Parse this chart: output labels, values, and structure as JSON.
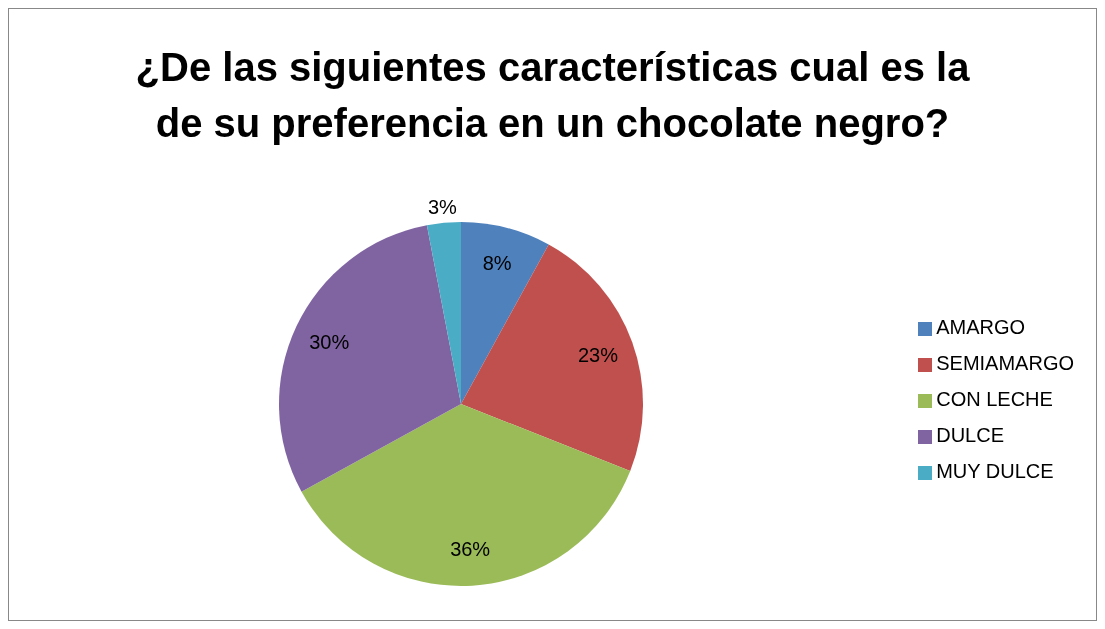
{
  "chart_data": {
    "type": "pie",
    "title": "¿De las siguientes características cual es la de su preferencia en un chocolate negro?",
    "categories": [
      "AMARGO",
      "SEMIAMARGO",
      "CON LECHE",
      "DULCE",
      "MUY DULCE"
    ],
    "values": [
      8,
      23,
      36,
      30,
      3
    ],
    "colors": [
      "#4f81bd",
      "#c0504d",
      "#9bbb59",
      "#8064a2",
      "#4bacc6"
    ],
    "value_labels": [
      "8%",
      "23%",
      "36%",
      "30%",
      "3%"
    ],
    "legend": "right"
  }
}
